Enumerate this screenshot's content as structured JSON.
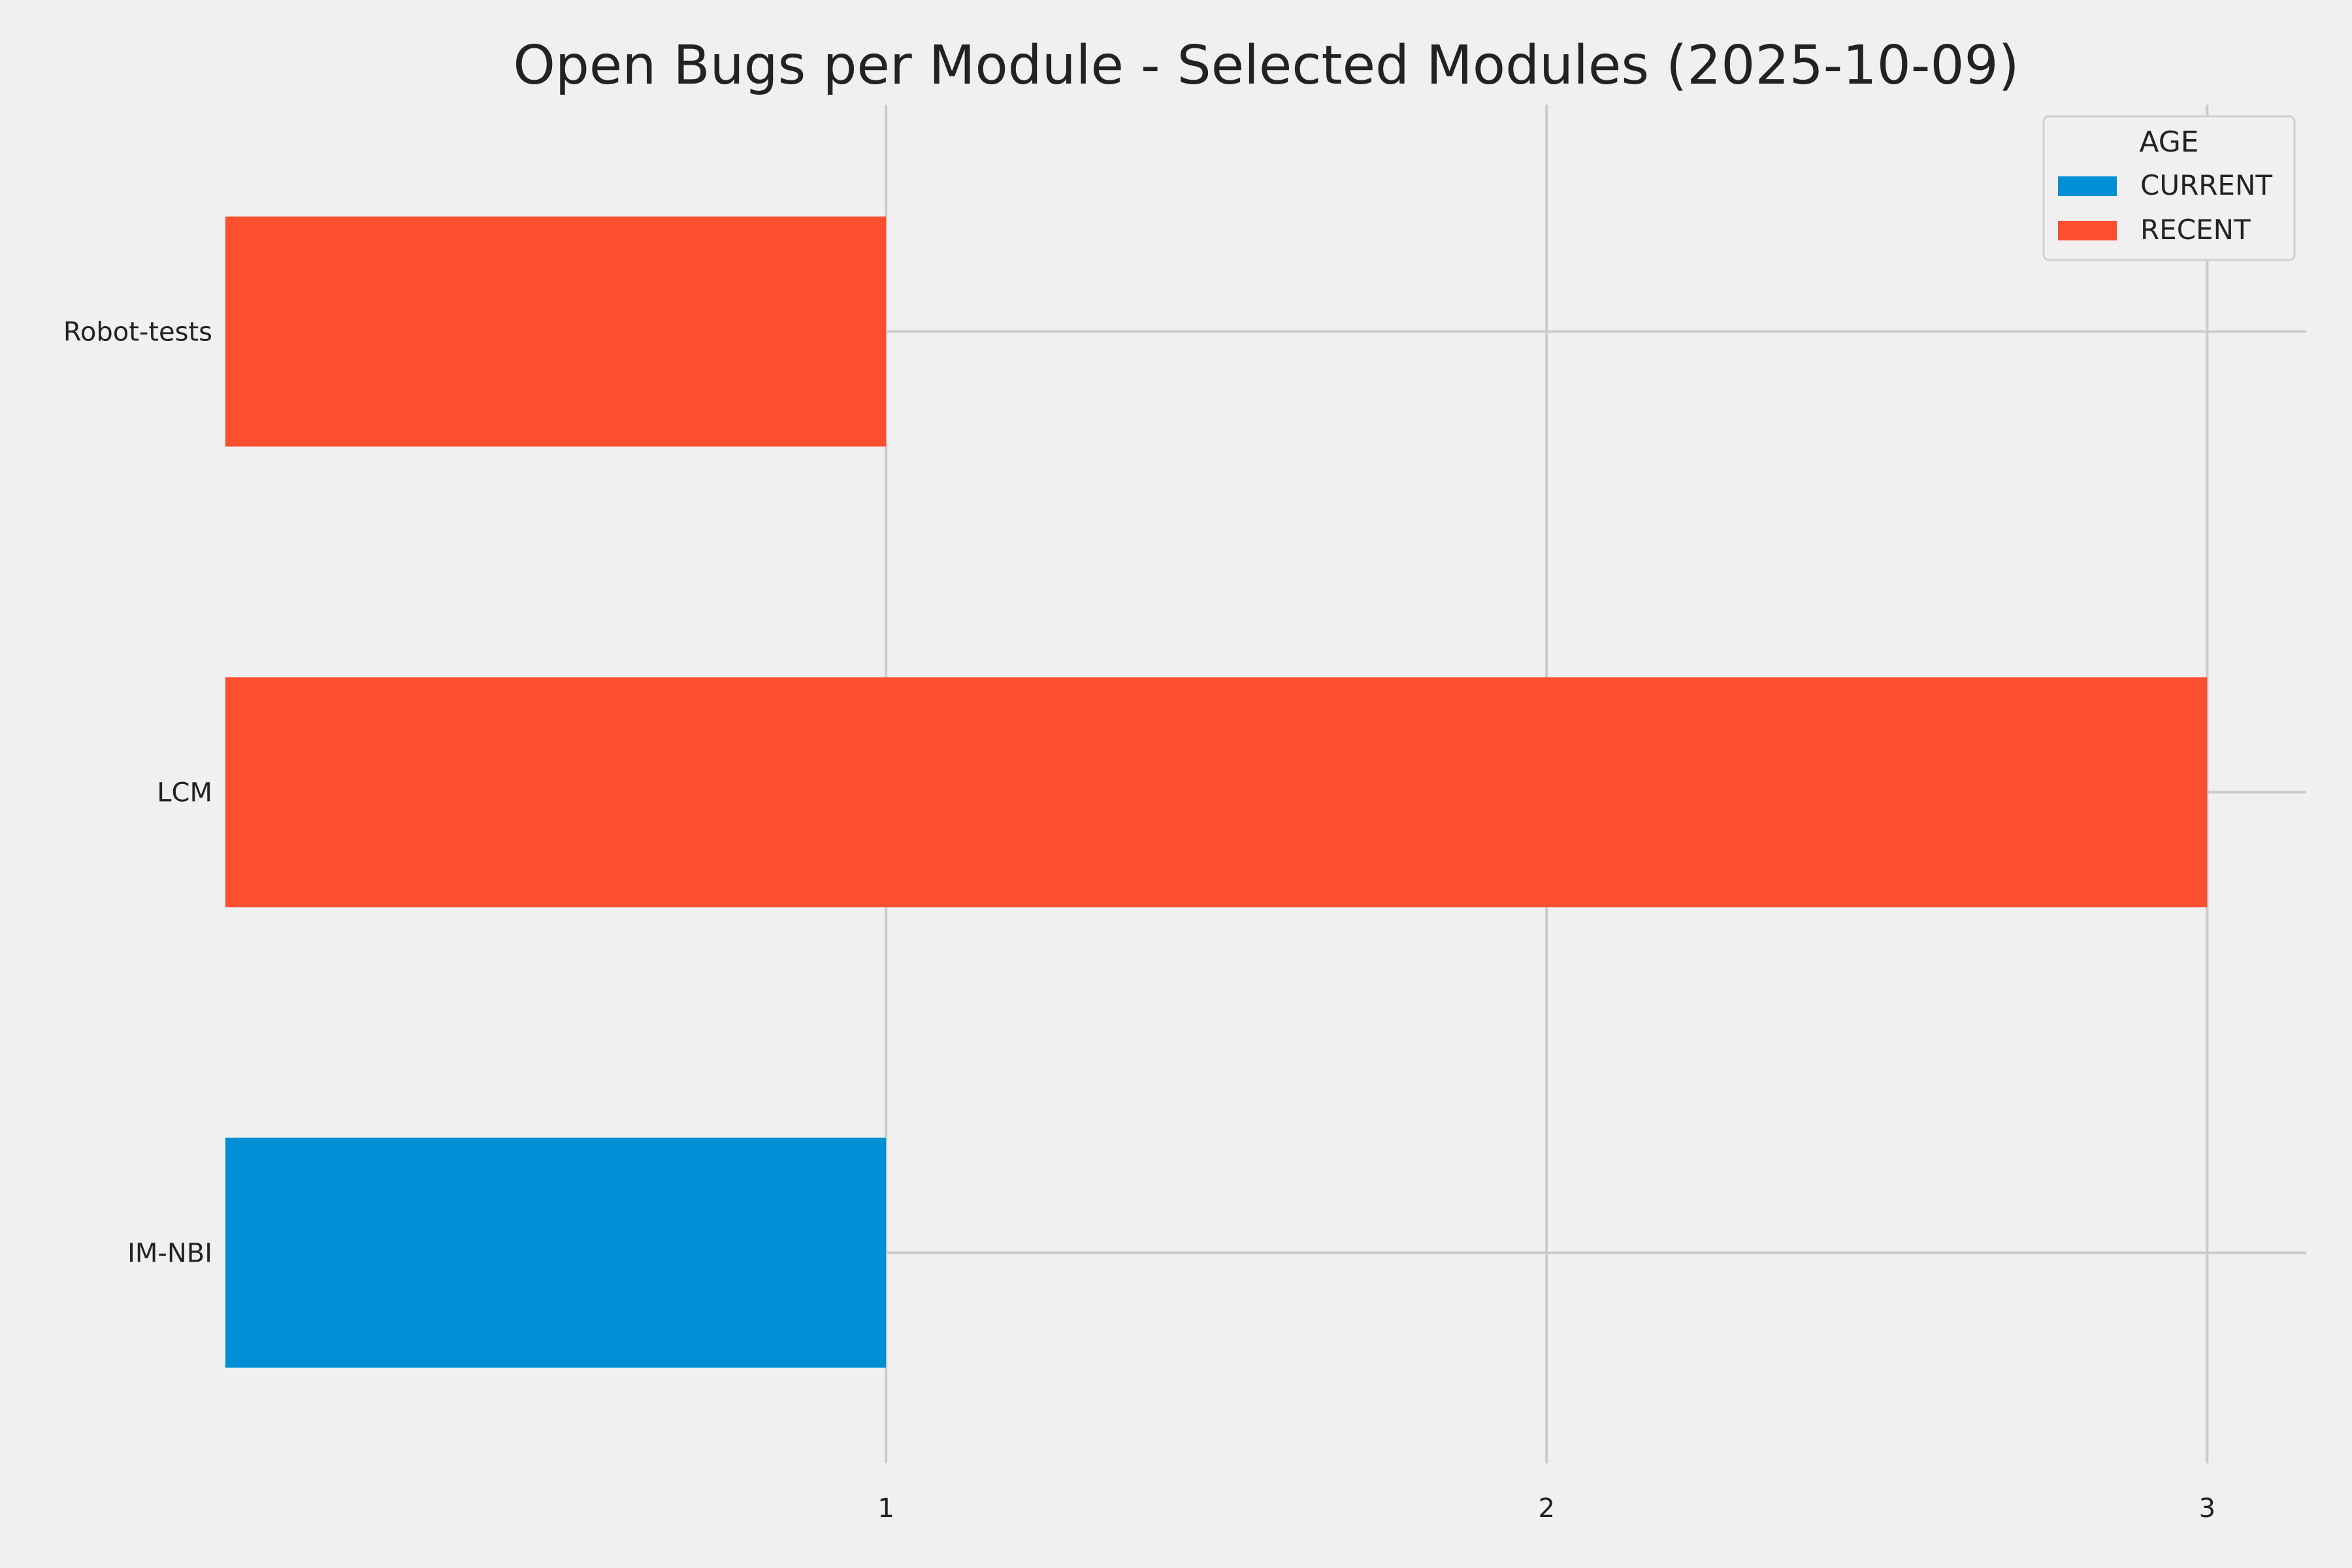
{
  "chart_data": {
    "type": "bar",
    "orientation": "horizontal",
    "stacked": true,
    "title": "Open Bugs per Module - Selected Modules (2025-10-09)",
    "xlabel": "",
    "ylabel": "",
    "categories": [
      "IM-NBI",
      "LCM",
      "Robot-tests"
    ],
    "series": [
      {
        "name": "CURRENT",
        "values": [
          1,
          0,
          0
        ],
        "color": "#008fd5"
      },
      {
        "name": "RECENT",
        "values": [
          0,
          3,
          1
        ],
        "color": "#fc4f30"
      }
    ],
    "xlim": [
      0,
      3.15
    ],
    "xticks": [
      1,
      2,
      3
    ],
    "grid": true,
    "legend": {
      "title": "AGE",
      "position": "top-right",
      "entries": [
        "CURRENT",
        "RECENT"
      ]
    }
  }
}
